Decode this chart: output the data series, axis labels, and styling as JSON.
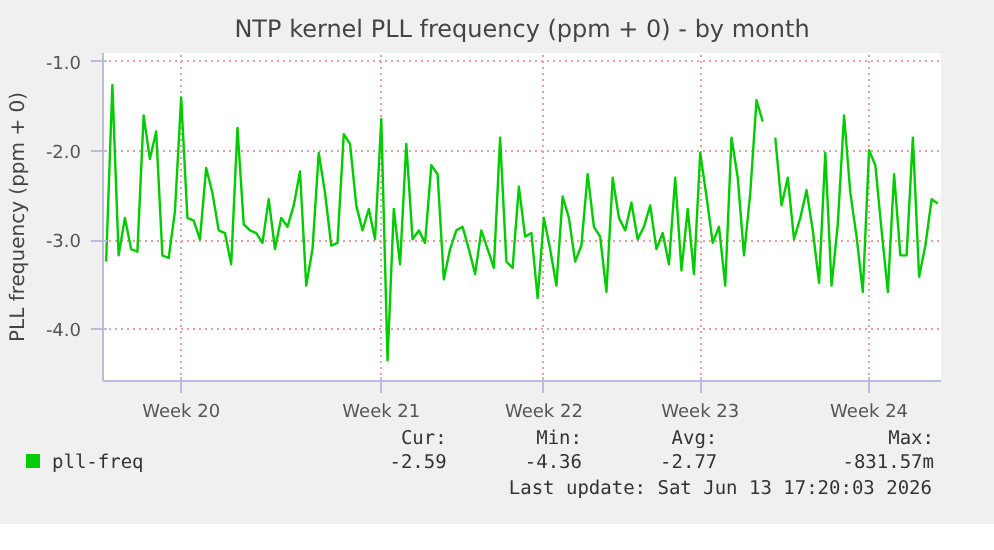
{
  "chart_data": {
    "type": "line",
    "title": "NTP kernel PLL frequency (ppm + 0) - by month",
    "ylabel": "PLL frequency (ppm + 0)",
    "categories": [
      null,
      null,
      null,
      null,
      null,
      null,
      null,
      null,
      null,
      null,
      null,
      null,
      "Week 20",
      null,
      null,
      null,
      null,
      null,
      null,
      null,
      null,
      null,
      null,
      null,
      null,
      null,
      null,
      null,
      null,
      null,
      null,
      null,
      null,
      null,
      null,
      null,
      null,
      null,
      null,
      null,
      null,
      null,
      null,
      null,
      "Week 21",
      null,
      null,
      null,
      null,
      null,
      null,
      null,
      null,
      null,
      null,
      null,
      null,
      null,
      null,
      null,
      null,
      null,
      null,
      null,
      null,
      null,
      null,
      null,
      null,
      null,
      "Week 22",
      null,
      null,
      null,
      null,
      null,
      null,
      null,
      null,
      null,
      null,
      null,
      null,
      null,
      null,
      null,
      null,
      null,
      null,
      null,
      null,
      null,
      null,
      null,
      null,
      "Week 23",
      null,
      null,
      null,
      null,
      null,
      null,
      null,
      null,
      null,
      null,
      null,
      null,
      null,
      null,
      null,
      null,
      null,
      null,
      null,
      null,
      null,
      null,
      null,
      null,
      null,
      null,
      "Week 24",
      null,
      null,
      null,
      null,
      null,
      null,
      null,
      null,
      null,
      null,
      null
    ],
    "ylim": [
      -4.58,
      -0.9
    ],
    "yticks": [
      {
        "value": -1,
        "label": "-1.0"
      },
      {
        "value": -2,
        "label": "-2.0"
      },
      {
        "value": -3,
        "label": "-3.0"
      },
      {
        "value": -4,
        "label": "-4.0"
      }
    ],
    "grid": true,
    "legend": "bottom",
    "annotations": [
      "Cur:",
      "Min:",
      "Avg:",
      "Max:",
      "-2.59",
      "-4.36",
      "-2.77",
      "-831.57m",
      "Last update: Sat Jun 13 17:20:03 2026"
    ],
    "series": [
      {
        "name": "pll-freq",
        "color": "#00cc00",
        "values": [
          -3.24,
          -1.26,
          -3.17,
          -2.75,
          -3.1,
          -3.13,
          -1.6,
          -2.09,
          -1.78,
          -3.17,
          -3.2,
          -2.68,
          -1.4,
          -2.75,
          -2.78,
          -2.99,
          -2.19,
          -2.47,
          -2.89,
          -2.92,
          -3.27,
          -1.74,
          -2.82,
          -2.89,
          -2.92,
          -3.03,
          -2.54,
          -3.1,
          -2.75,
          -2.85,
          -2.61,
          -2.23,
          -3.51,
          -3.1,
          -2.02,
          -2.47,
          -3.06,
          -3.03,
          -1.81,
          -1.92,
          -2.61,
          -2.89,
          -2.65,
          -2.99,
          -1.64,
          -4.35,
          -2.65,
          -3.27,
          -1.92,
          -2.99,
          -2.89,
          -3.03,
          -2.16,
          -2.26,
          -3.44,
          -3.1,
          -2.89,
          -2.85,
          -3.1,
          -3.38,
          -2.89,
          -3.1,
          -3.31,
          -1.85,
          -3.24,
          -3.31,
          -2.4,
          -2.96,
          -2.92,
          -3.65,
          -2.75,
          -3.1,
          -3.51,
          -2.51,
          -2.75,
          -3.24,
          -3.06,
          -2.26,
          -2.85,
          -2.96,
          -3.58,
          -2.3,
          -2.75,
          -2.89,
          -2.58,
          -2.99,
          -2.85,
          -2.61,
          -3.1,
          -2.92,
          -3.27,
          -2.3,
          -3.34,
          -2.65,
          -3.38,
          -2.02,
          -2.51,
          -3.03,
          -2.85,
          -3.51,
          -1.85,
          -2.3,
          -3.17,
          -2.47,
          -1.43,
          -1.67,
          null,
          -1.85,
          -2.61,
          -2.3,
          -2.99,
          -2.75,
          -2.44,
          -2.89,
          -3.48,
          -2.02,
          -3.51,
          -2.82,
          -1.6,
          -2.47,
          -2.96,
          -3.58,
          -1.99,
          -2.16,
          -2.89,
          -3.58,
          -2.26,
          -3.17,
          -3.17,
          -1.85,
          -3.41,
          -3.06,
          -2.54,
          -2.59
        ]
      }
    ]
  }
}
